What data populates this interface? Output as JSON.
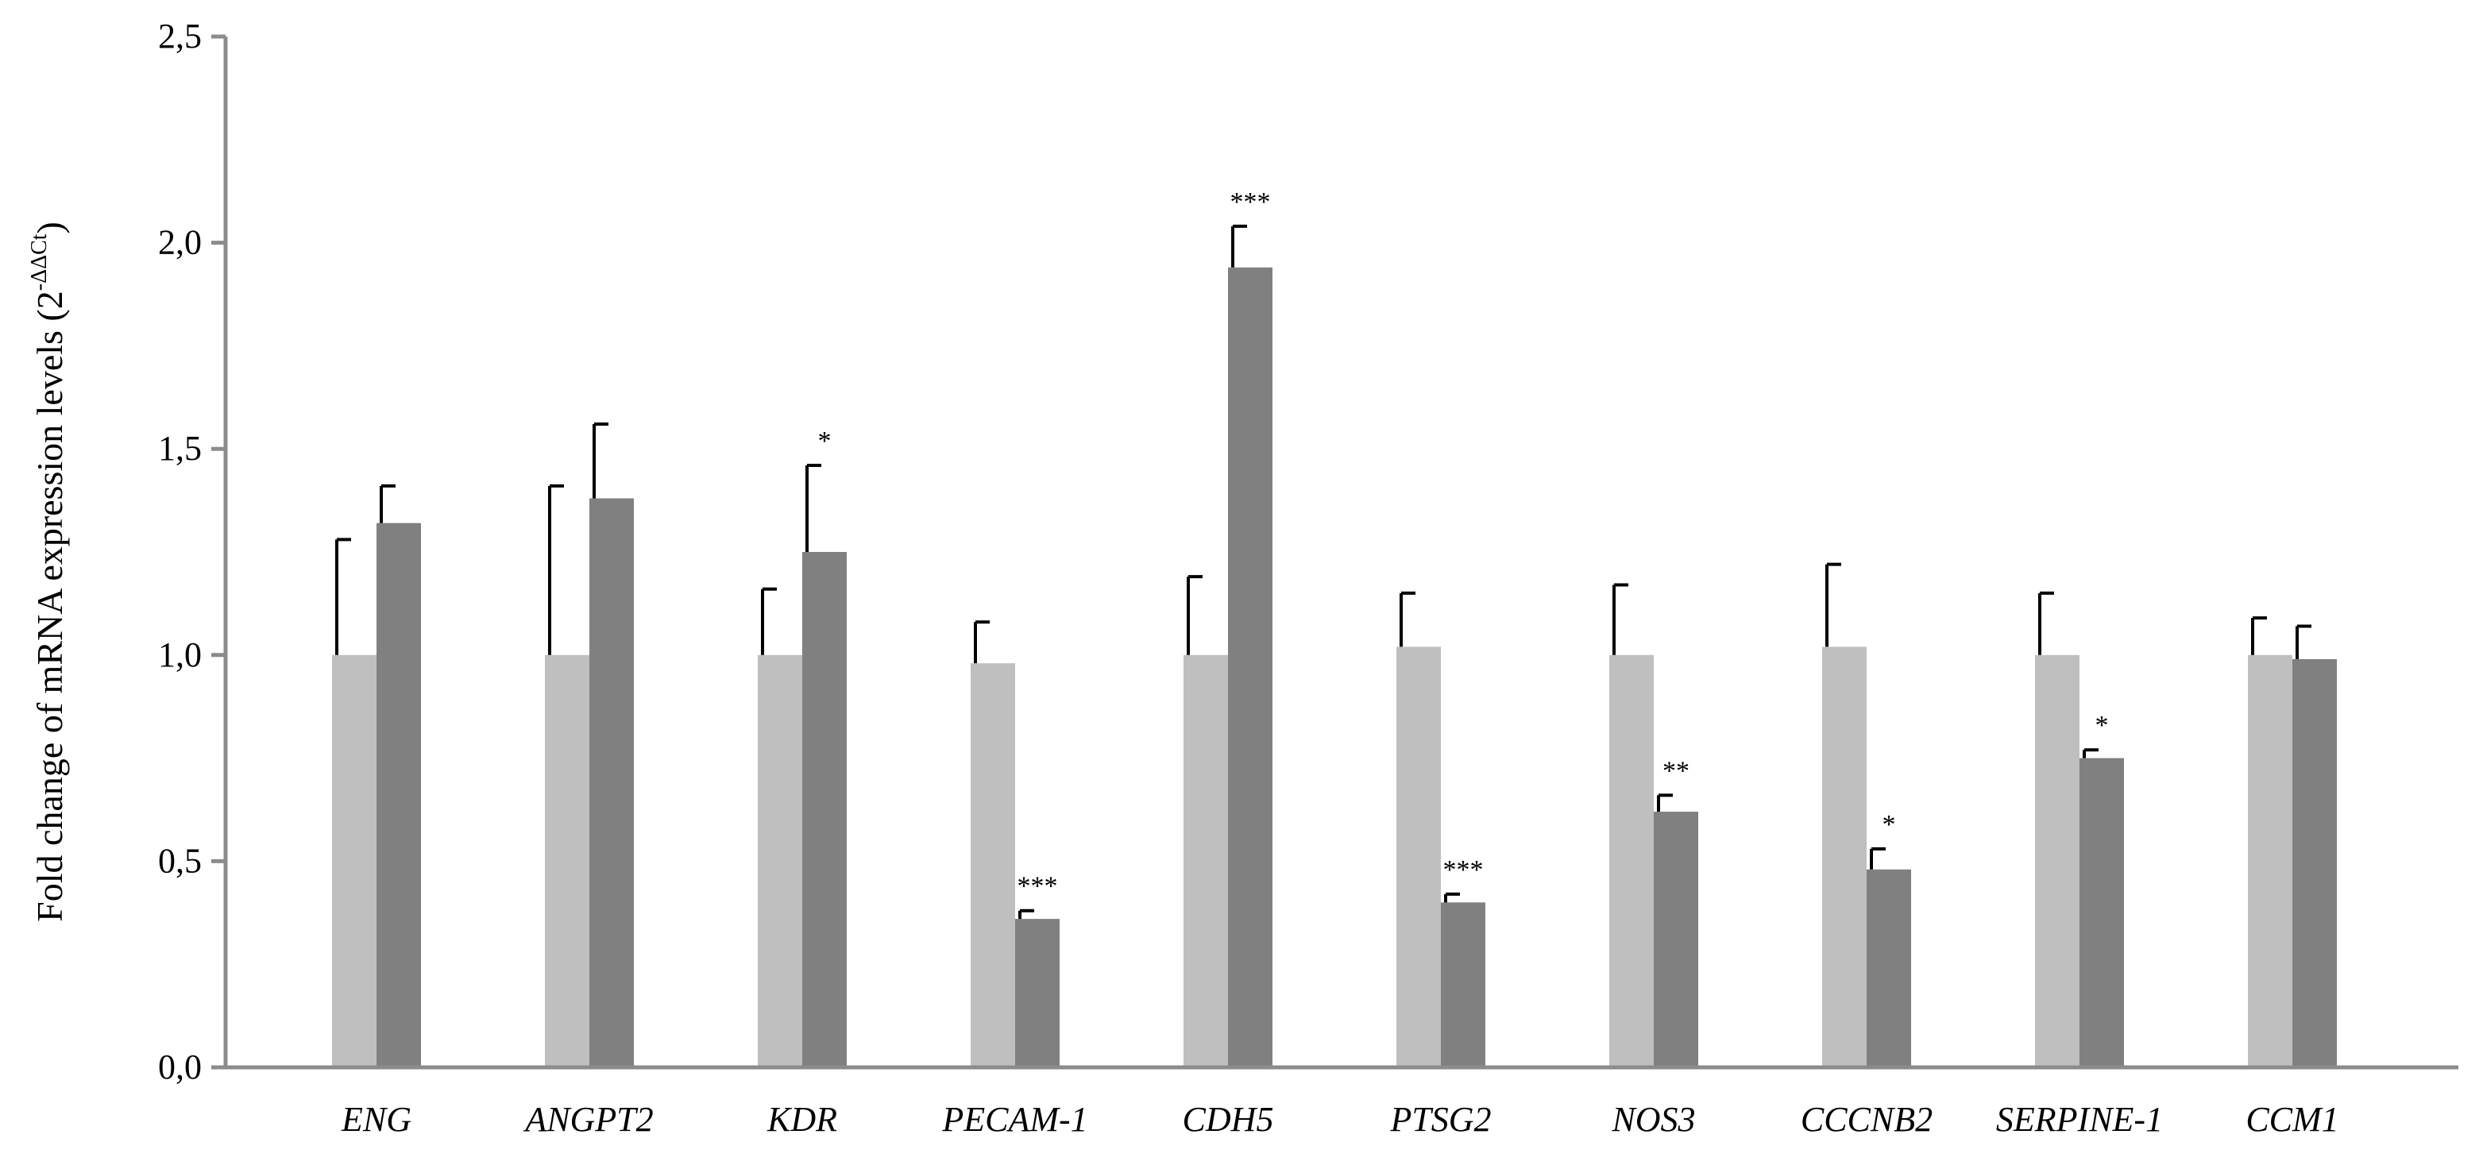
{
  "chart_data": {
    "type": "bar",
    "title": "",
    "xlabel": "",
    "ylabel": "Fold change of mRNA expression levels (2",
    "ylabel_superscript": "-ΔΔCt",
    "ylabel_suffix": ")",
    "ylim": [
      0,
      2.5
    ],
    "yticks": [
      {
        "value": 0.0,
        "label": "0,0"
      },
      {
        "value": 0.5,
        "label": "0,5"
      },
      {
        "value": 1.0,
        "label": "1,0"
      },
      {
        "value": 1.5,
        "label": "1,5"
      },
      {
        "value": 2.0,
        "label": "2,0"
      },
      {
        "value": 2.5,
        "label": "2,5"
      }
    ],
    "categories": [
      "ENG",
      "ANGPT2",
      "KDR",
      "PECAM-1",
      "CDH5",
      "PTSG2",
      "NOS3",
      "CCCNB2",
      "SERPINE-1",
      "CCM1"
    ],
    "grid": false,
    "legend": "none",
    "series": [
      {
        "color": "#bfbfbf",
        "values": [
          1.0,
          1.0,
          1.0,
          0.98,
          1.0,
          1.02,
          1.0,
          1.02,
          1.0,
          1.0
        ],
        "error_upper": [
          1.28,
          1.41,
          1.16,
          1.08,
          1.19,
          1.15,
          1.17,
          1.22,
          1.15,
          1.09
        ],
        "significance": [
          "",
          "",
          "",
          "",
          "",
          "",
          "",
          "",
          "",
          ""
        ]
      },
      {
        "color": "#808080",
        "values": [
          1.32,
          1.38,
          1.25,
          0.36,
          1.94,
          0.4,
          0.62,
          0.48,
          0.75,
          0.99
        ],
        "error_upper": [
          1.41,
          1.56,
          1.46,
          0.38,
          2.04,
          0.42,
          0.66,
          0.53,
          0.77,
          1.07
        ],
        "significance": [
          "",
          "",
          "*",
          "***",
          "***",
          "***",
          "**",
          "*",
          "*",
          ""
        ]
      }
    ]
  }
}
